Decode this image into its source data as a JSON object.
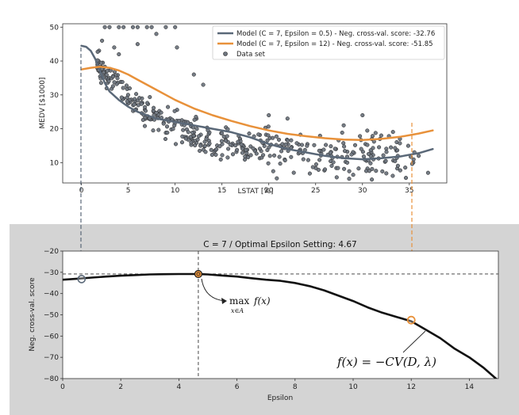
{
  "colors": {
    "model_a": "#5a6878",
    "model_b": "#e8913a",
    "points": "#6f7680",
    "panel_bg": "#d4d4d4",
    "cv_curve": "#111111"
  },
  "chart_data": [
    {
      "type": "scatter",
      "xlabel": "LSTAT [%]",
      "ylabel": "MEDV [$1000]",
      "xlim": [
        -2,
        39
      ],
      "ylim": [
        4,
        51
      ],
      "xticks": [
        "0",
        "5",
        "10",
        "15",
        "20",
        "25",
        "30",
        "35"
      ],
      "yticks": [
        "10",
        "20",
        "30",
        "40",
        "50"
      ],
      "legend_position": "top-right",
      "series": [
        {
          "name": "Model (C = 7, Epsilon = 0.5) - Neg. cross-val. score: -32.76",
          "kind": "line",
          "x": [
            0,
            0.5,
            1,
            1.5,
            2,
            2.5,
            3,
            4,
            5,
            6,
            7,
            8,
            9,
            10,
            12,
            14,
            16,
            18,
            20,
            22,
            24,
            26,
            28,
            30,
            32,
            34,
            36,
            37.5
          ],
          "y": [
            44.5,
            44.2,
            43.0,
            40.5,
            37.0,
            33.5,
            31.0,
            28.5,
            26.5,
            25.0,
            24.0,
            23.0,
            22.5,
            22.0,
            21.0,
            20.0,
            19.0,
            17.5,
            15.5,
            14.0,
            13.0,
            12.0,
            11.3,
            11.0,
            11.3,
            11.8,
            12.8,
            14.0
          ]
        },
        {
          "name": "Model (C = 7, Epsilon = 12) - Neg. cross-val. score: -51.85",
          "kind": "line",
          "x": [
            0,
            1,
            2,
            3,
            4,
            5,
            6,
            7,
            8,
            9,
            10,
            12,
            14,
            16,
            18,
            20,
            22,
            24,
            26,
            28,
            30,
            32,
            34,
            36,
            37.5
          ],
          "y": [
            37.5,
            38.0,
            38.3,
            38.0,
            37.2,
            36.0,
            34.5,
            33.0,
            31.5,
            30.0,
            28.5,
            26.0,
            24.0,
            22.3,
            20.8,
            19.5,
            18.5,
            17.8,
            17.2,
            16.8,
            16.7,
            17.0,
            17.6,
            18.6,
            19.5
          ]
        },
        {
          "name": "Data set",
          "kind": "points"
        }
      ]
    },
    {
      "type": "line",
      "title": "C = 7 / Optimal Epsilon Setting: 4.67",
      "xlabel": "Epsilon",
      "ylabel": "Neg. cross-val. score",
      "xlim": [
        0,
        15
      ],
      "ylim": [
        -80,
        -20
      ],
      "xticks": [
        "0",
        "2",
        "4",
        "6",
        "8",
        "10",
        "12",
        "14"
      ],
      "yticks": [
        "−20",
        "−30",
        "−40",
        "−50",
        "−60",
        "−70",
        "−80"
      ],
      "grid": false,
      "series": [
        {
          "kind": "line",
          "x": [
            0,
            0.5,
            1,
            1.5,
            2,
            2.5,
            3,
            3.5,
            4,
            4.5,
            4.67,
            5,
            5.5,
            6,
            6.5,
            7,
            7.5,
            8,
            8.5,
            9,
            9.5,
            10,
            10.5,
            11,
            11.5,
            12,
            12.5,
            13,
            13.5,
            14,
            14.5,
            15
          ],
          "y": [
            -33.5,
            -33.0,
            -32.5,
            -32.0,
            -31.6,
            -31.3,
            -31.0,
            -30.9,
            -30.8,
            -30.8,
            -30.8,
            -31.0,
            -31.5,
            -32.0,
            -32.8,
            -33.5,
            -34.0,
            -35.0,
            -36.5,
            -38.5,
            -41.0,
            -43.5,
            -46.5,
            -49.0,
            -51.0,
            -53.0,
            -57.0,
            -61.0,
            -66.0,
            -70.0,
            -75.0,
            -81.0
          ]
        }
      ],
      "annotations": {
        "max_label_top": "max",
        "max_label_fx": "f(x)",
        "max_label_sub": "x∈A",
        "cv_formula": "f(x) = −CV(D, λ)",
        "optimum": {
          "x": 4.67,
          "y": -30.8
        },
        "reference_y": -30.8,
        "marker_eps_small": {
          "x": 0.65,
          "y": -33.2
        },
        "marker_eps_large": {
          "x": 12.0,
          "y": -52.5
        }
      }
    }
  ]
}
